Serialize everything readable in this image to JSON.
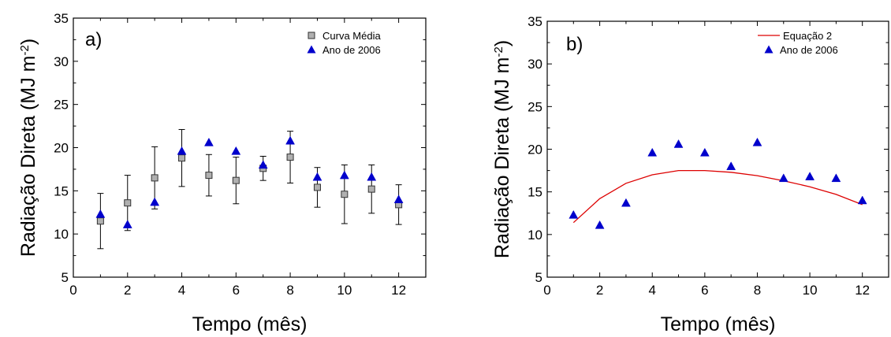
{
  "chart_data": [
    {
      "type": "scatter",
      "panel_label": "a)",
      "xlabel": "Tempo (mês)",
      "ylabel": "Radiação Direta (MJ m",
      "ylabel_sup": "-2",
      "ylabel_close": ")",
      "xlim": [
        0,
        13
      ],
      "ylim": [
        5,
        35
      ],
      "xticks": [
        0,
        2,
        4,
        6,
        8,
        10,
        12
      ],
      "yticks": [
        5,
        10,
        15,
        20,
        25,
        30,
        35
      ],
      "legend_position": "top-right",
      "series": [
        {
          "name": "Curva Média",
          "marker": "square",
          "color": "#b0b0b0",
          "x": [
            1,
            2,
            3,
            4,
            5,
            6,
            7,
            8,
            9,
            10,
            11,
            12
          ],
          "y": [
            11.5,
            13.6,
            16.5,
            18.8,
            16.8,
            16.2,
            17.6,
            18.9,
            15.4,
            14.6,
            15.2,
            13.4
          ],
          "error": [
            3.2,
            3.2,
            3.6,
            3.3,
            2.4,
            2.7,
            1.4,
            3.0,
            2.3,
            3.4,
            2.8,
            2.3
          ]
        },
        {
          "name": "Ano de 2006",
          "marker": "triangle",
          "color": "#0000cc",
          "x": [
            1,
            2,
            3,
            4,
            5,
            6,
            7,
            8,
            9,
            10,
            11,
            12
          ],
          "y": [
            12.3,
            11.1,
            13.7,
            19.6,
            20.6,
            19.6,
            18.0,
            20.8,
            16.6,
            16.8,
            16.6,
            14.0
          ]
        }
      ]
    },
    {
      "type": "line",
      "panel_label": "b)",
      "xlabel": "Tempo (mês)",
      "ylabel": "Radiação Direta (MJ m",
      "ylabel_sup": "-2",
      "ylabel_close": ")",
      "xlim": [
        0,
        13
      ],
      "ylim": [
        5,
        35
      ],
      "xticks": [
        0,
        2,
        4,
        6,
        8,
        10,
        12
      ],
      "yticks": [
        5,
        10,
        15,
        20,
        25,
        30,
        35
      ],
      "legend_position": "top-right",
      "series": [
        {
          "name": "Equação 2",
          "marker": "line",
          "color": "#dd0000",
          "x": [
            1,
            2,
            3,
            4,
            5,
            6,
            7,
            8,
            9,
            10,
            11,
            12
          ],
          "y": [
            11.4,
            14.2,
            16.0,
            17.0,
            17.5,
            17.5,
            17.3,
            16.9,
            16.3,
            15.6,
            14.7,
            13.5
          ]
        },
        {
          "name": "Ano de 2006",
          "marker": "triangle",
          "color": "#0000cc",
          "x": [
            1,
            2,
            3,
            4,
            5,
            6,
            7,
            8,
            9,
            10,
            11,
            12
          ],
          "y": [
            12.3,
            11.1,
            13.7,
            19.6,
            20.6,
            19.6,
            18.0,
            20.8,
            16.6,
            16.8,
            16.6,
            14.0
          ]
        }
      ]
    }
  ]
}
